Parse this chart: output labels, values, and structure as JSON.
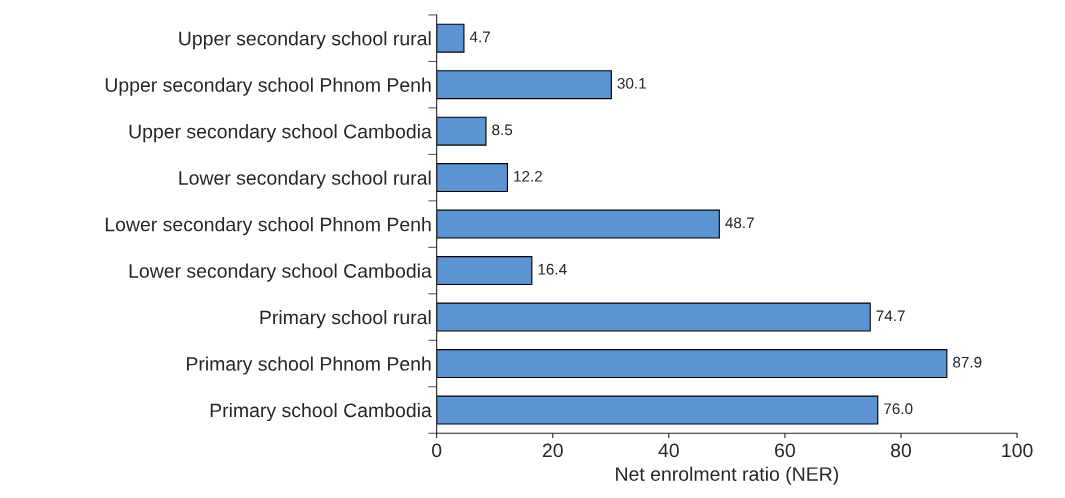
{
  "chart_data": {
    "type": "bar",
    "orientation": "horizontal",
    "xlabel": "Net enrolment ratio (NER)",
    "categories": [
      "Upper secondary school rural",
      "Upper secondary school Phnom Penh",
      "Upper secondary school Cambodia",
      "Lower secondary school rural",
      "Lower secondary school Phnom Penh",
      "Lower secondary school Cambodia",
      "Primary school rural",
      "Primary school Phnom Penh",
      "Primary school Cambodia"
    ],
    "values": [
      4.7,
      30.1,
      8.5,
      12.2,
      48.7,
      16.4,
      74.7,
      87.9,
      76.0
    ],
    "value_labels": [
      "4.7",
      "30.1",
      "8.5",
      "12.2",
      "48.7",
      "16.4",
      "74.7",
      "87.9",
      "76.0"
    ],
    "color": "#5b93d3",
    "xlim": [
      0,
      100
    ],
    "xticks": [
      0,
      20,
      40,
      60,
      80,
      100
    ],
    "grid": false,
    "legend": false
  }
}
